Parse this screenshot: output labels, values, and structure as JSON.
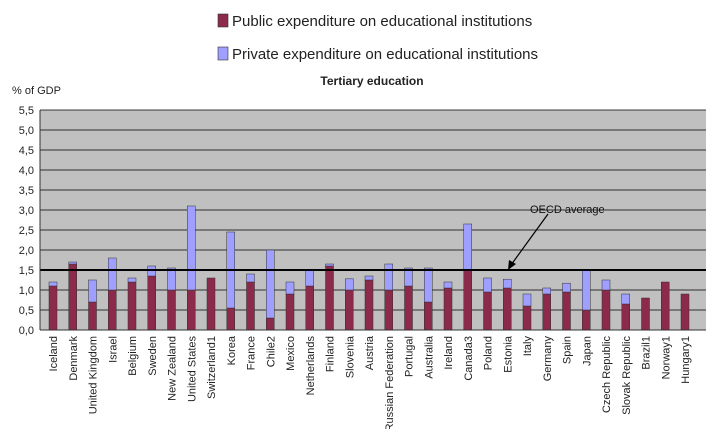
{
  "chart_data": {
    "type": "bar",
    "stacked": true,
    "title": "Tertiary education",
    "ylabel": "% of GDP",
    "ylim": [
      0,
      5.5
    ],
    "ytick_step": 0.5,
    "ytick_labels": [
      "0,0",
      "0,5",
      "1,0",
      "1,5",
      "2,0",
      "2,5",
      "3,0",
      "3,5",
      "4,0",
      "4,5",
      "5,0",
      "5,5"
    ],
    "grid": true,
    "legend_position": "top",
    "colors": {
      "public": "#8b2a4a",
      "private": "#9f9fff",
      "plot_background": "#c0c0c0",
      "reference_line": "#000000"
    },
    "categories": [
      "Iceland",
      "Denmark",
      "United Kingdom",
      "Israel",
      "Belgium",
      "Sweden",
      "New Zealand",
      "United States",
      "Switzerland1",
      "Korea",
      "France",
      "Chile2",
      "Mexico",
      "Netherlands",
      "Finland",
      "Slovenia",
      "Austria",
      "Russian Federation",
      "Portugal",
      "Australia",
      "Ireland",
      "Canada3",
      "Poland",
      "Estonia",
      "Italy",
      "Germany",
      "Spain",
      "Japan",
      "Czech Republic",
      "Slovak Republic",
      "Brazil1",
      "Norway1",
      "Hungary1"
    ],
    "series": [
      {
        "name": "Public expenditure on educational institutions",
        "values": [
          1.1,
          1.65,
          0.7,
          1.0,
          1.2,
          1.35,
          1.0,
          1.0,
          1.3,
          0.55,
          1.2,
          0.3,
          0.9,
          1.1,
          1.6,
          1.0,
          1.25,
          1.0,
          1.1,
          0.7,
          1.05,
          1.5,
          0.95,
          1.05,
          0.6,
          0.9,
          0.95,
          0.5,
          1.0,
          0.65,
          0.8,
          1.2,
          0.9
        ]
      },
      {
        "name": "Private expenditure on educational institutions",
        "values": [
          0.1,
          0.05,
          0.55,
          0.8,
          0.1,
          0.25,
          0.55,
          2.1,
          0.0,
          1.9,
          0.2,
          1.7,
          0.3,
          0.4,
          0.05,
          0.28,
          0.1,
          0.65,
          0.45,
          0.85,
          0.15,
          1.15,
          0.35,
          0.22,
          0.3,
          0.15,
          0.22,
          1.0,
          0.25,
          0.25,
          0.0,
          0.0,
          0.0
        ]
      }
    ],
    "reference_line": {
      "value": 1.5,
      "label": "OECD average"
    }
  }
}
